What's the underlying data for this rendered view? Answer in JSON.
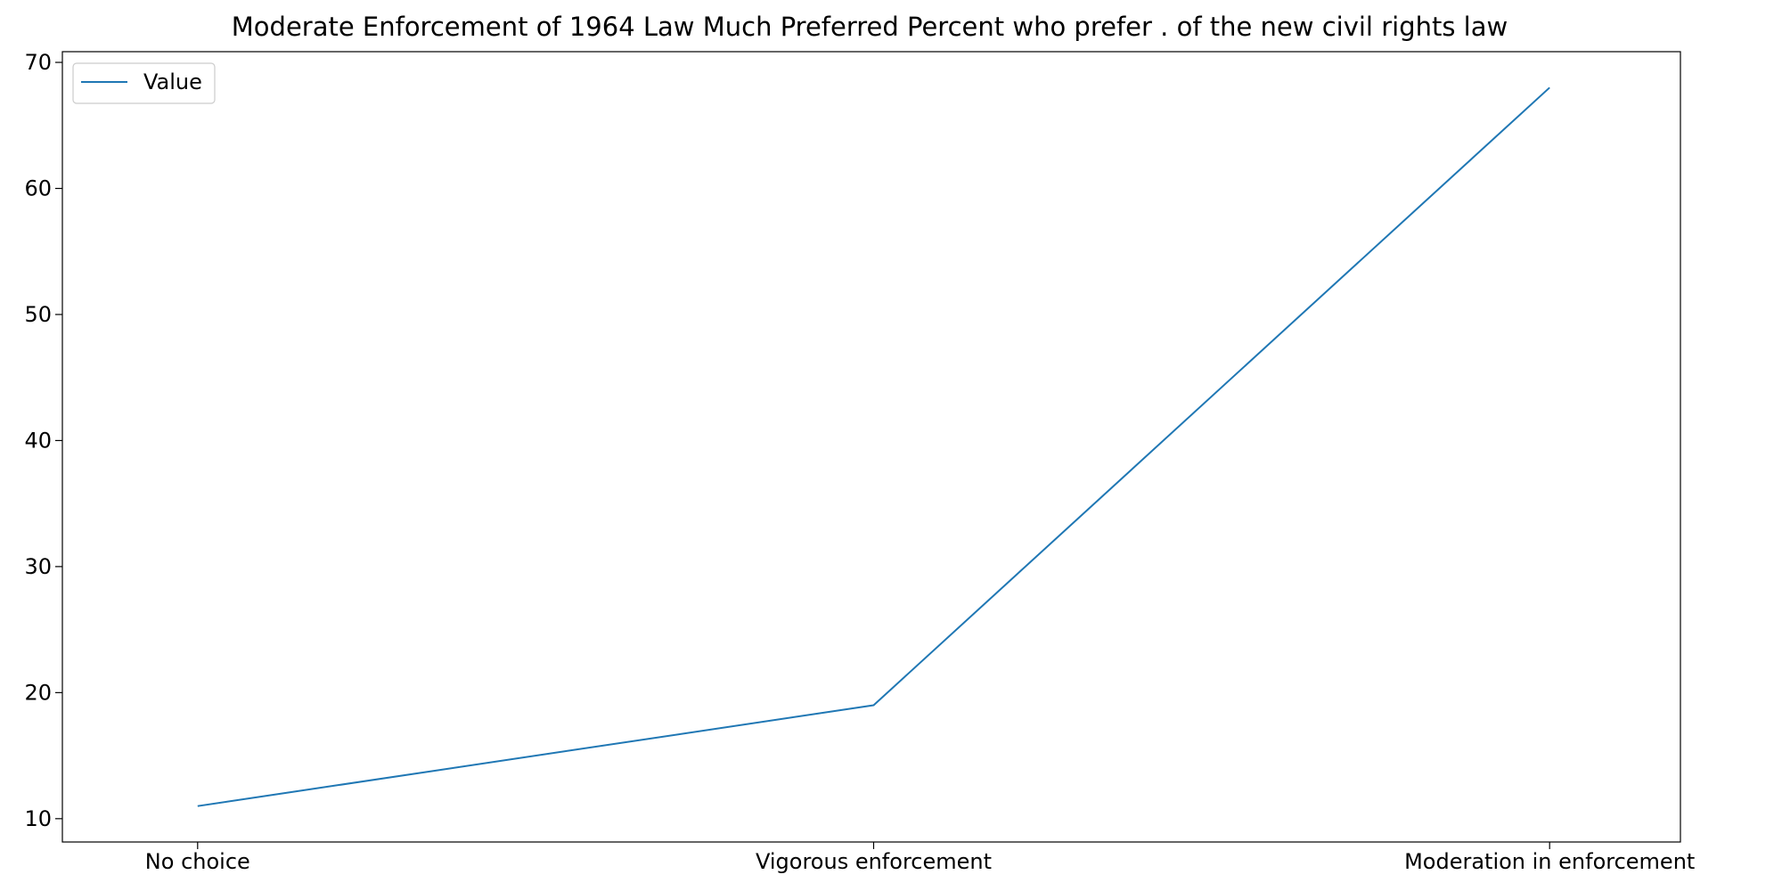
{
  "chart_data": {
    "type": "line",
    "title": "Moderate Enforcement of 1964 Law Much Preferred Percent who prefer . of the new civil rights law",
    "xlabel": "",
    "ylabel": "",
    "categories": [
      "No choice",
      "Vigorous enforcement",
      "Moderation in enforcement"
    ],
    "series": [
      {
        "name": "Value",
        "values": [
          11,
          19,
          68
        ],
        "color": "#1f77b4"
      }
    ],
    "yticks": [
      10,
      20,
      30,
      40,
      50,
      60,
      70
    ],
    "ylim": [
      8.15,
      70.85
    ],
    "grid": false,
    "legend_position": "top-left"
  }
}
